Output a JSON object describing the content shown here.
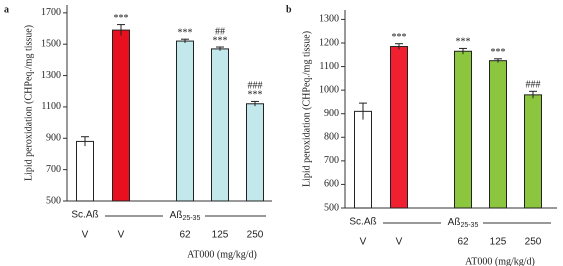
{
  "chart_data": [
    {
      "type": "bar",
      "panel_label": "a",
      "ylabel": "Lipid peroxidation (CHPeq./mg tissue)",
      "categories": [
        "V",
        "V",
        "62",
        "125",
        "250"
      ],
      "values": [
        880,
        1590,
        1520,
        1470,
        1120
      ],
      "errors": [
        30,
        35,
        12,
        12,
        15
      ],
      "colors": [
        "#ffffff",
        "#e8101e",
        "#c2e8ec",
        "#c2e8ec",
        "#c2e8ec"
      ],
      "annotations": [
        null,
        [
          "***"
        ],
        [
          "***"
        ],
        [
          "***",
          "##"
        ],
        [
          "***",
          "###"
        ]
      ],
      "groups": [
        {
          "label": "Sc.Aß"
        },
        {
          "label": "Aß",
          "subscript": "25-35"
        }
      ],
      "xlabel": "AT000 (mg/kg/d)",
      "ylim": [
        500,
        1750
      ],
      "yticks": [
        500,
        700,
        900,
        1100,
        1300,
        1500,
        1700
      ]
    },
    {
      "type": "bar",
      "panel_label": "b",
      "ylabel": "Lipid peroxidation (CHPeq./mg tissue)",
      "categories": [
        "V",
        "V",
        "62",
        "125",
        "250"
      ],
      "values": [
        910,
        1185,
        1165,
        1125,
        980
      ],
      "errors": [
        35,
        12,
        12,
        8,
        15
      ],
      "colors": [
        "#ffffff",
        "#f02030",
        "#8cc63f",
        "#8cc63f",
        "#8cc63f"
      ],
      "annotations": [
        null,
        [
          "***"
        ],
        [
          "***"
        ],
        [
          "***"
        ],
        [
          "###"
        ]
      ],
      "groups": [
        {
          "label": "Sc.Aß"
        },
        {
          "label": "Aß",
          "subscript": "25-35"
        }
      ],
      "xlabel": "AT000 (mg/kg/d)",
      "ylim": [
        500,
        1340
      ],
      "yticks": [
        500,
        600,
        700,
        800,
        900,
        1000,
        1100,
        1200,
        1300
      ]
    }
  ]
}
